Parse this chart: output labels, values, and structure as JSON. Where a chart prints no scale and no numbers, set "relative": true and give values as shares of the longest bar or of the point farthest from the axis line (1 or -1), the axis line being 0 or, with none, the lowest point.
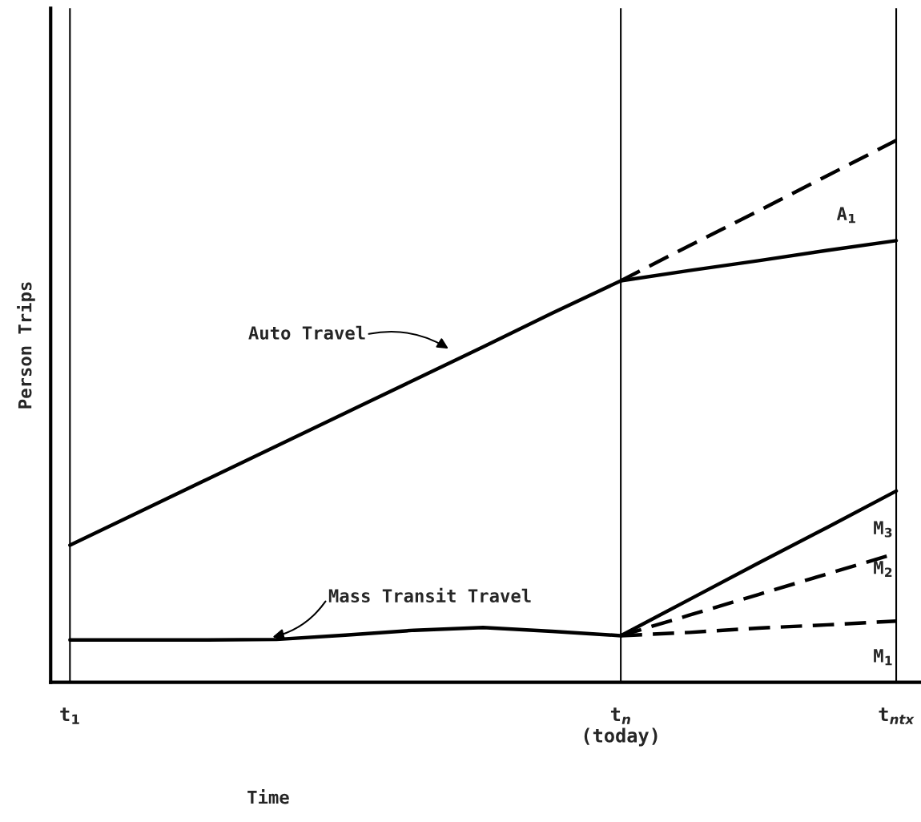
{
  "chart_data": {
    "type": "line",
    "relative": true,
    "xlabel": "Time",
    "ylabel": "Person Trips",
    "categories": [
      "t$_{1}$",
      null,
      null,
      null,
      null,
      null,
      null,
      null,
      "t$_{n}$\n(today)",
      null,
      null,
      null,
      "t$_{ntx}$"
    ],
    "grid": "x",
    "marker": "none",
    "series": [
      {
        "color": "#000000",
        "line_style": "solid",
        "values": [
          0.253,
          0.314,
          0.375,
          0.436,
          0.497,
          0.558,
          0.619,
          0.681,
          0.741,
          0.76,
          0.778,
          0.797,
          0.815
        ]
      },
      {
        "color": "#000000",
        "line_style": "dashed",
        "values": [
          null,
          null,
          null,
          null,
          null,
          null,
          null,
          null,
          0.741,
          0.806,
          0.87,
          0.935,
          1.0
        ]
      },
      {
        "color": "#000000",
        "line_style": "solid",
        "values": [
          0.078,
          0.078,
          0.078,
          0.079,
          0.087,
          0.096,
          0.101,
          0.094,
          0.086,
          0.153,
          0.22,
          0.286,
          0.353
        ]
      },
      {
        "color": "#000000",
        "line_style": "dashed",
        "values": [
          null,
          null,
          null,
          null,
          null,
          null,
          null,
          null,
          0.086,
          0.124,
          0.162,
          0.2,
          0.238
        ]
      },
      {
        "color": "#000000",
        "line_style": "dashed",
        "values": [
          null,
          null,
          null,
          null,
          null,
          null,
          null,
          null,
          0.086,
          0.092,
          0.1,
          0.106,
          0.113
        ]
      }
    ],
    "annotations": [
      "Auto Travel",
      "Mass Transit Travel",
      "A$_{1}$",
      "M$_{3}$",
      "M$_{2}$",
      "M$_{1}$"
    ]
  }
}
